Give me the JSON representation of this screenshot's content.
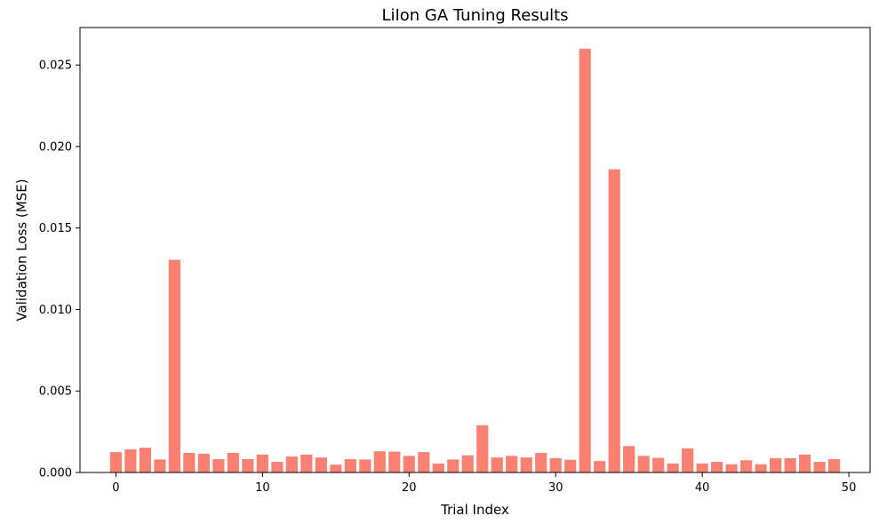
{
  "chart_data": {
    "type": "bar",
    "title": "LiIon GA Tuning Results",
    "xlabel": "Trial Index",
    "ylabel": "Validation Loss (MSE)",
    "xlim": [
      -2.45,
      51.45
    ],
    "ylim": [
      0,
      0.0273
    ],
    "x_ticks": [
      0,
      10,
      20,
      30,
      40,
      50
    ],
    "x_tick_labels": [
      "0",
      "10",
      "20",
      "30",
      "40",
      "50"
    ],
    "y_ticks": [
      0,
      0.005,
      0.01,
      0.015,
      0.02,
      0.025
    ],
    "y_tick_labels": [
      "0.000",
      "0.005",
      "0.010",
      "0.015",
      "0.020",
      "0.025"
    ],
    "bar_color": "#fa8072",
    "grid": false,
    "x": [
      0,
      1,
      2,
      3,
      4,
      5,
      6,
      7,
      8,
      9,
      10,
      11,
      12,
      13,
      14,
      15,
      16,
      17,
      18,
      19,
      20,
      21,
      22,
      23,
      24,
      25,
      26,
      27,
      28,
      29,
      30,
      31,
      32,
      33,
      34,
      35,
      36,
      37,
      38,
      39,
      40,
      41,
      42,
      43,
      44,
      45,
      46,
      47,
      48,
      49
    ],
    "values": [
      0.00125,
      0.00142,
      0.00152,
      0.0008,
      0.01305,
      0.0012,
      0.00115,
      0.00082,
      0.0012,
      0.00082,
      0.0011,
      0.00065,
      0.00098,
      0.0011,
      0.00092,
      0.00048,
      0.00082,
      0.0008,
      0.0013,
      0.00128,
      0.00102,
      0.00125,
      0.00055,
      0.0008,
      0.00105,
      0.0029,
      0.00092,
      0.00102,
      0.00092,
      0.0012,
      0.00088,
      0.00078,
      0.026,
      0.0007,
      0.0186,
      0.00162,
      0.00102,
      0.0009,
      0.00055,
      0.00148,
      0.00055,
      0.00065,
      0.0005,
      0.00075,
      0.0005,
      0.00088,
      0.00088,
      0.0011,
      0.00065,
      0.00082
    ]
  }
}
